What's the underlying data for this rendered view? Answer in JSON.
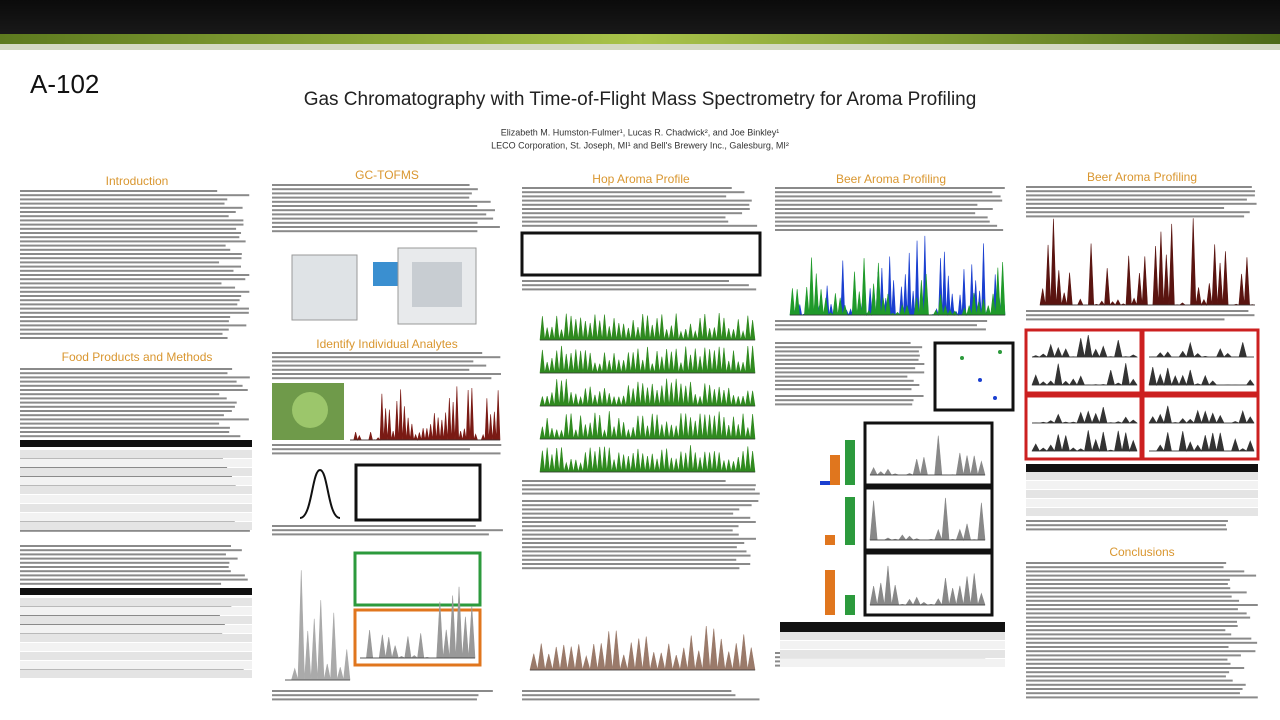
{
  "poster_id": "A-102",
  "title": "Gas Chromatography with Time-of-Flight Mass Spectrometry for Aroma Profiling",
  "authors": "Elizabeth M. Humston-Fulmer¹, Lucas R. Chadwick², and Joe Binkley¹",
  "affiliations": "LECO Corporation, St. Joseph, MI¹ and Bell's Brewery Inc., Galesburg, MI²",
  "sections": [
    {
      "heading": "Introduction"
    },
    {
      "heading": "Food Products and Methods"
    },
    {
      "heading": "GC-TOFMS"
    },
    {
      "heading": "Identify Individual Analytes"
    },
    {
      "heading": "Hop Aroma Profile"
    },
    {
      "heading": "Beer Aroma Profiling"
    },
    {
      "heading": "Beer Aroma Profiling"
    },
    {
      "heading": "Conclusions"
    }
  ]
}
